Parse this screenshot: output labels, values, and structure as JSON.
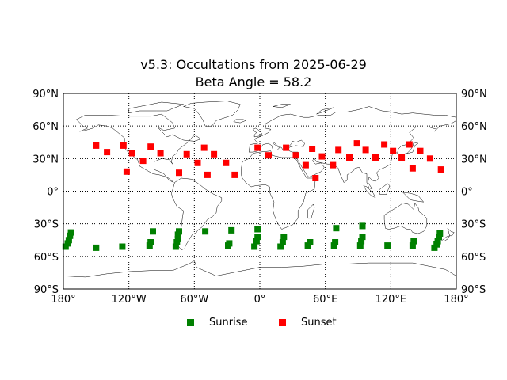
{
  "chart_data": {
    "type": "scatter",
    "title": "v5.3: Occultations from 2025-06-29",
    "subtitle": "Beta Angle = 58.2",
    "xlabel": "",
    "ylabel": "",
    "xlim": [
      -180,
      180
    ],
    "ylim": [
      -90,
      90
    ],
    "grid": true,
    "x_ticks": [
      -180,
      -120,
      -60,
      0,
      60,
      120,
      180
    ],
    "x_tick_labels": [
      "180°",
      "120°W",
      "60°W",
      "0°",
      "60°E",
      "120°E",
      "180°"
    ],
    "y_ticks": [
      -90,
      -60,
      -30,
      0,
      30,
      60,
      90
    ],
    "y_tick_labels": [
      "90°S",
      "60°S",
      "30°S",
      "0°",
      "30°N",
      "60°N",
      "90°N"
    ],
    "legend_position": "bottom-center",
    "series": [
      {
        "name": "Sunrise",
        "color": "#008000",
        "marker": "square",
        "points": [
          [
            -173,
            -38
          ],
          [
            -174,
            -41
          ],
          [
            -175,
            -45
          ],
          [
            -176,
            -48
          ],
          [
            -178,
            -51
          ],
          [
            -150,
            -52
          ],
          [
            -126,
            -51
          ],
          [
            -98,
            -37
          ],
          [
            -100,
            -47
          ],
          [
            -101,
            -50
          ],
          [
            -74,
            -37
          ],
          [
            -75,
            -40
          ],
          [
            -75,
            -44
          ],
          [
            -76,
            -47
          ],
          [
            -77,
            -51
          ],
          [
            -50,
            -37
          ],
          [
            -26,
            -36
          ],
          [
            -28,
            -48
          ],
          [
            -29,
            -50
          ],
          [
            -2,
            -35
          ],
          [
            -2,
            -42
          ],
          [
            -3,
            -46
          ],
          [
            -5,
            -51
          ],
          [
            22,
            -42
          ],
          [
            21,
            -47
          ],
          [
            19,
            -51
          ],
          [
            46,
            -47
          ],
          [
            44,
            -50
          ],
          [
            70,
            -34
          ],
          [
            69,
            -47
          ],
          [
            68,
            -50
          ],
          [
            94,
            -32
          ],
          [
            94,
            -42
          ],
          [
            93,
            -46
          ],
          [
            92,
            -50
          ],
          [
            117,
            -50
          ],
          [
            141,
            -46
          ],
          [
            140,
            -50
          ],
          [
            165,
            -39
          ],
          [
            164,
            -42
          ],
          [
            163,
            -46
          ],
          [
            162,
            -49
          ],
          [
            160,
            -52
          ]
        ]
      },
      {
        "name": "Sunset",
        "color": "#ff0000",
        "marker": "square",
        "points": [
          [
            -150,
            42
          ],
          [
            -140,
            36
          ],
          [
            -125,
            42
          ],
          [
            -122,
            18
          ],
          [
            -117,
            35
          ],
          [
            -107,
            28
          ],
          [
            -100,
            41
          ],
          [
            -91,
            35
          ],
          [
            -74,
            17
          ],
          [
            -67,
            34
          ],
          [
            -57,
            26
          ],
          [
            -51,
            40
          ],
          [
            -48,
            15
          ],
          [
            -42,
            34
          ],
          [
            -31,
            26
          ],
          [
            -23,
            15
          ],
          [
            -2,
            40
          ],
          [
            8,
            33
          ],
          [
            24,
            40
          ],
          [
            33,
            33
          ],
          [
            42,
            24
          ],
          [
            48,
            39
          ],
          [
            51,
            12
          ],
          [
            57,
            32
          ],
          [
            67,
            24
          ],
          [
            72,
            38
          ],
          [
            82,
            31
          ],
          [
            89,
            44
          ],
          [
            97,
            38
          ],
          [
            106,
            31
          ],
          [
            114,
            43
          ],
          [
            122,
            37
          ],
          [
            130,
            31
          ],
          [
            137,
            43
          ],
          [
            140,
            21
          ],
          [
            147,
            37
          ],
          [
            156,
            30
          ],
          [
            166,
            20
          ]
        ]
      }
    ]
  }
}
